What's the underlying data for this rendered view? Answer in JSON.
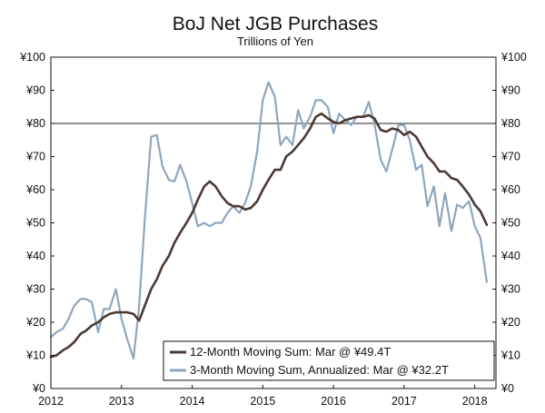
{
  "chart_data": {
    "type": "line",
    "title": "BoJ Net JGB Purchases",
    "subtitle": "Trillions of Yen",
    "xlabel": "",
    "ylabel": "",
    "x_tick_labels": [
      "2012",
      "2013",
      "2014",
      "2015",
      "2016",
      "2017",
      "2018"
    ],
    "y_tick_labels": [
      "¥0",
      "¥10",
      "¥20",
      "¥30",
      "¥40",
      "¥50",
      "¥60",
      "¥70",
      "¥80",
      "¥90",
      "¥100"
    ],
    "y_tick_values": [
      0,
      10,
      20,
      30,
      40,
      50,
      60,
      70,
      80,
      90,
      100
    ],
    "xlim": [
      2012.0,
      2018.3
    ],
    "ylim": [
      0,
      100
    ],
    "reference_line": 80,
    "series": [
      {
        "name": "12-Month Moving Sum: Mar @ ¥49.4T",
        "color": "#4a3a32",
        "x": [
          2012.0,
          2012.08,
          2012.17,
          2012.25,
          2012.33,
          2012.42,
          2012.5,
          2012.58,
          2012.67,
          2012.75,
          2012.83,
          2012.92,
          2013.0,
          2013.08,
          2013.17,
          2013.25,
          2013.33,
          2013.42,
          2013.5,
          2013.58,
          2013.67,
          2013.75,
          2013.83,
          2013.92,
          2014.0,
          2014.08,
          2014.17,
          2014.25,
          2014.33,
          2014.42,
          2014.5,
          2014.58,
          2014.67,
          2014.75,
          2014.83,
          2014.92,
          2015.0,
          2015.08,
          2015.17,
          2015.25,
          2015.33,
          2015.42,
          2015.5,
          2015.58,
          2015.67,
          2015.75,
          2015.83,
          2015.92,
          2016.0,
          2016.08,
          2016.17,
          2016.25,
          2016.33,
          2016.42,
          2016.5,
          2016.58,
          2016.67,
          2016.75,
          2016.83,
          2016.92,
          2017.0,
          2017.08,
          2017.17,
          2017.25,
          2017.33,
          2017.42,
          2017.5,
          2017.58,
          2017.67,
          2017.75,
          2017.83,
          2017.92,
          2018.0,
          2018.08,
          2018.17
        ],
        "values": [
          9.5,
          10,
          11.5,
          12.5,
          14,
          16.5,
          17.5,
          19,
          20,
          21.5,
          22.5,
          23,
          23,
          23,
          22.5,
          20.5,
          25,
          30,
          33,
          37,
          40,
          44,
          47,
          50,
          53,
          57,
          61,
          62.5,
          61,
          58,
          56,
          55,
          55,
          54,
          54.5,
          56.5,
          60,
          63,
          66,
          66,
          70,
          71.5,
          73.5,
          75.5,
          78.5,
          82,
          83,
          81.5,
          80.5,
          80,
          81,
          81.5,
          82,
          82,
          82.5,
          81.5,
          78,
          77.5,
          78.5,
          78,
          76.5,
          77.5,
          76,
          73,
          70,
          68,
          65.5,
          65.5,
          63.5,
          63,
          61,
          58.5,
          55.5,
          53.5,
          49.4
        ]
      },
      {
        "name": "3-Month Moving Sum, Annualized: Mar @ ¥32.2T",
        "color": "#8fa6bd",
        "x": [
          2012.0,
          2012.08,
          2012.17,
          2012.25,
          2012.33,
          2012.42,
          2012.5,
          2012.58,
          2012.67,
          2012.75,
          2012.83,
          2012.92,
          2013.0,
          2013.08,
          2013.17,
          2013.25,
          2013.33,
          2013.42,
          2013.5,
          2013.58,
          2013.67,
          2013.75,
          2013.83,
          2013.92,
          2014.0,
          2014.08,
          2014.17,
          2014.25,
          2014.33,
          2014.42,
          2014.5,
          2014.58,
          2014.67,
          2014.75,
          2014.83,
          2014.92,
          2015.0,
          2015.08,
          2015.17,
          2015.25,
          2015.33,
          2015.42,
          2015.5,
          2015.58,
          2015.67,
          2015.75,
          2015.83,
          2015.92,
          2016.0,
          2016.08,
          2016.17,
          2016.25,
          2016.33,
          2016.42,
          2016.5,
          2016.58,
          2016.67,
          2016.75,
          2016.83,
          2016.92,
          2017.0,
          2017.08,
          2017.17,
          2017.25,
          2017.33,
          2017.42,
          2017.5,
          2017.58,
          2017.67,
          2017.75,
          2017.83,
          2017.92,
          2018.0,
          2018.08,
          2018.17
        ],
        "values": [
          15.5,
          17,
          18,
          21,
          25,
          27,
          27,
          26,
          17,
          24,
          24,
          30,
          21,
          15,
          9,
          25,
          51,
          76,
          76.5,
          67,
          63,
          62.5,
          67.5,
          62.5,
          56,
          49,
          50,
          49,
          50,
          50,
          53,
          55,
          53,
          56,
          61,
          71.5,
          87,
          92.5,
          88,
          73.5,
          76,
          73.5,
          84,
          78.5,
          82,
          87,
          87,
          85,
          77,
          83,
          81,
          79.5,
          82,
          82,
          86.5,
          80,
          69,
          65.5,
          72,
          79.5,
          79.5,
          75,
          66,
          67.5,
          55,
          61,
          49,
          59,
          47.5,
          55.5,
          54.5,
          56.5,
          49,
          45.5,
          32.2
        ]
      }
    ],
    "legend": {
      "position": "bottom-right",
      "entries": [
        "12-Month Moving Sum: Mar @ ¥49.4T",
        "3-Month Moving Sum, Annualized: Mar @ ¥32.2T"
      ]
    }
  }
}
